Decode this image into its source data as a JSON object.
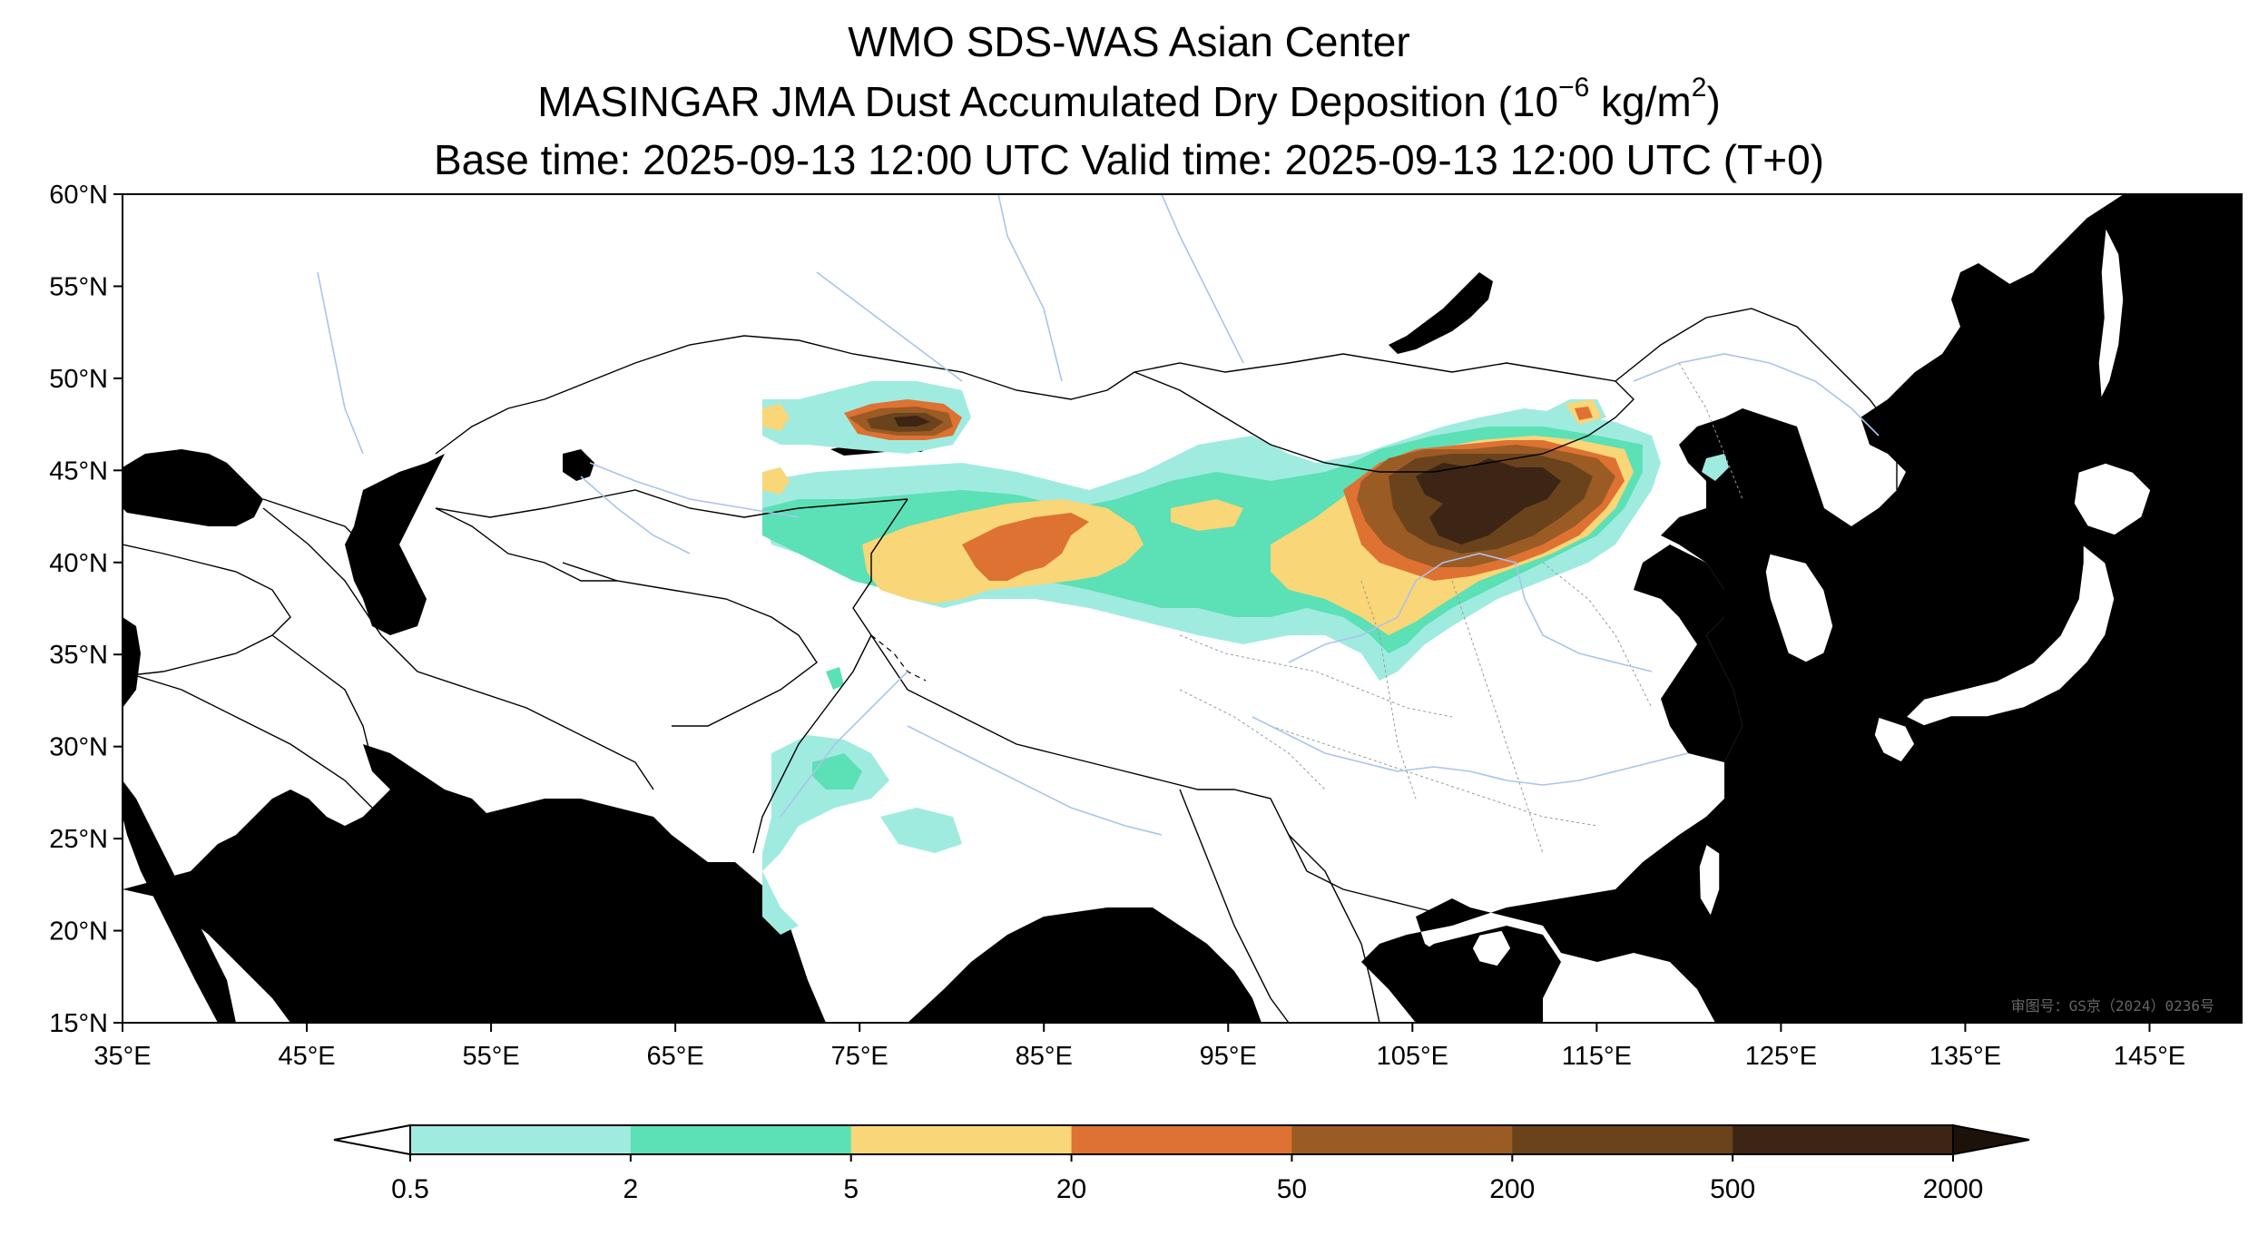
{
  "title": {
    "line1": "WMO SDS-WAS Asian Center",
    "line2_text": "MASINGAR JMA Dust Accumulated Dry Deposition (10",
    "line2_exp": "−6",
    "line2_unit": " kg/m",
    "line2_unit_exp": "2",
    "line2_close": ")",
    "line3": "Base time: 2025-09-13 12:00 UTC Valid time: 2025-09-13 12:00 UTC (T+0)"
  },
  "map": {
    "extent": {
      "lon": [
        35,
        150
      ],
      "lat": [
        15,
        60
      ]
    },
    "ocean_color": "#a9c4ec",
    "land_color": "#ffffff",
    "lon_ticks": [
      {
        "value": 35,
        "label": "35°E"
      },
      {
        "value": 45,
        "label": "45°E"
      },
      {
        "value": 55,
        "label": "55°E"
      },
      {
        "value": 65,
        "label": "65°E"
      },
      {
        "value": 75,
        "label": "75°E"
      },
      {
        "value": 85,
        "label": "85°E"
      },
      {
        "value": 95,
        "label": "95°E"
      },
      {
        "value": 105,
        "label": "105°E"
      },
      {
        "value": 115,
        "label": "115°E"
      },
      {
        "value": 125,
        "label": "125°E"
      },
      {
        "value": 135,
        "label": "135°E"
      },
      {
        "value": 145,
        "label": "145°E"
      }
    ],
    "lat_ticks": [
      {
        "value": 60,
        "label": "60°N"
      },
      {
        "value": 55,
        "label": "55°N"
      },
      {
        "value": 50,
        "label": "50°N"
      },
      {
        "value": 45,
        "label": "45°N"
      },
      {
        "value": 40,
        "label": "40°N"
      },
      {
        "value": 35,
        "label": "35°N"
      },
      {
        "value": 30,
        "label": "30°N"
      },
      {
        "value": 25,
        "label": "25°N"
      },
      {
        "value": 20,
        "label": "20°N"
      },
      {
        "value": 15,
        "label": "15°N"
      }
    ],
    "watermark": "审图号：GS京（2024）0236号"
  },
  "colorbar": {
    "levels": [
      "0.5",
      "2",
      "5",
      "20",
      "50",
      "200",
      "500",
      "2000"
    ],
    "colors": [
      "#a0ebe0",
      "#5ce0b6",
      "#f9d677",
      "#dd7233",
      "#9b5b24",
      "#6a431c",
      "#3c2514"
    ],
    "under_color": "#ffffff",
    "over_color": "#1d120a"
  }
}
